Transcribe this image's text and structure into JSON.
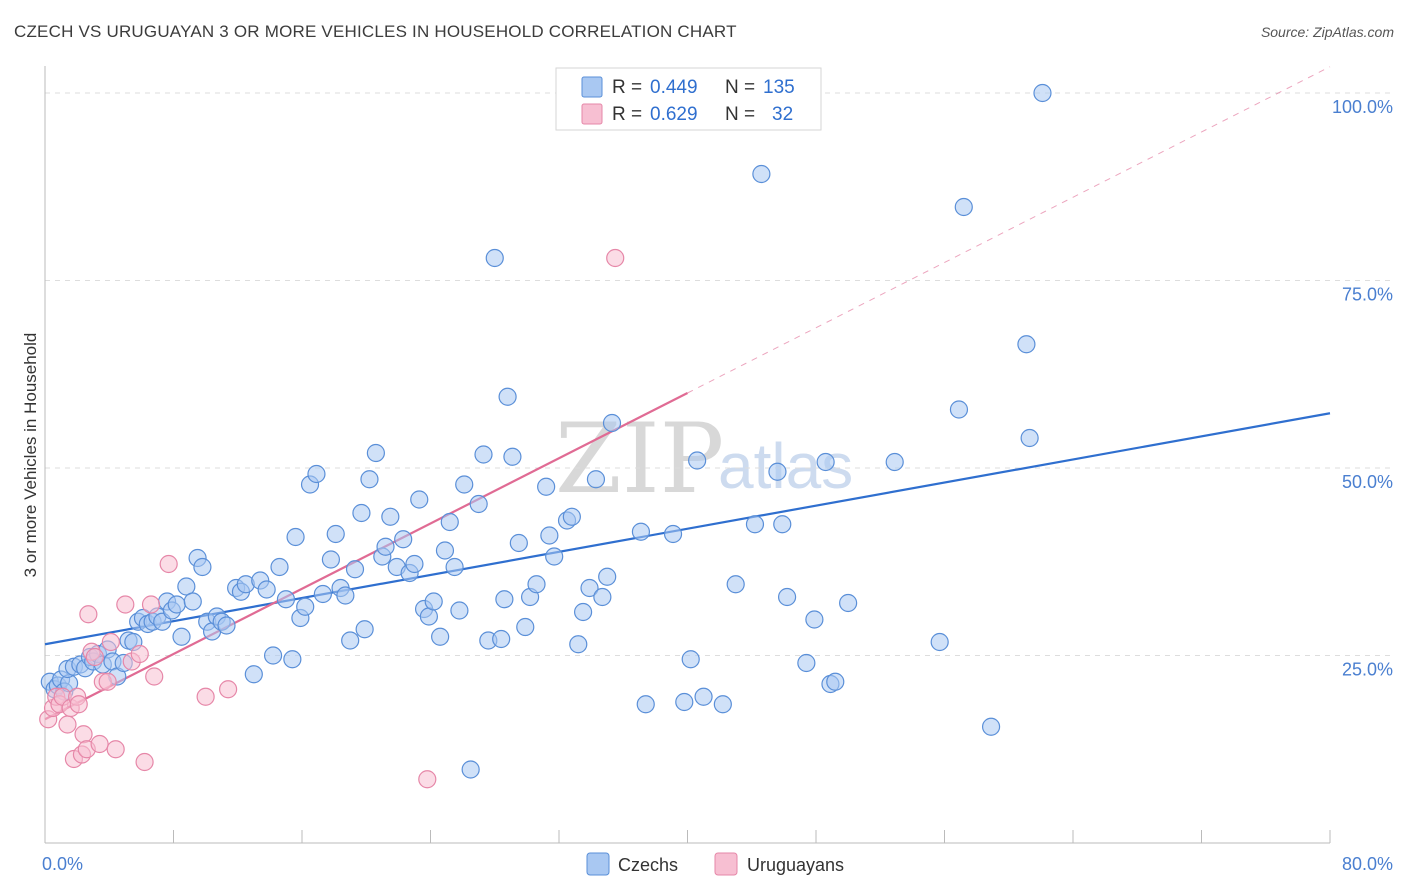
{
  "header": {
    "title": "CZECH VS URUGUAYAN 3 OR MORE VEHICLES IN HOUSEHOLD CORRELATION CHART",
    "source": "Source: ZipAtlas.com"
  },
  "legend_top": {
    "rows": [
      {
        "r_label": "R =",
        "r_value": "0.449",
        "n_label": "N =",
        "n_value": "135"
      },
      {
        "r_label": "R =",
        "r_value": "0.629",
        "n_label": "N =",
        "n_value": "32"
      }
    ]
  },
  "watermark": {
    "zip": "ZIP",
    "atlas": "atlas"
  },
  "colors": {
    "czech_fill": "#a9c8f2",
    "czech_stroke": "#5a8fd8",
    "czech_line": "#2f6fcf",
    "uruguay_fill": "#f7bfd2",
    "uruguay_stroke": "#e687a8",
    "uruguay_line": "#e06b94",
    "tick_text": "#4a7fd0",
    "grid": "#dddddd"
  },
  "chart_data": {
    "type": "scatter",
    "title": "CZECH VS URUGUAYAN 3 OR MORE VEHICLES IN HOUSEHOLD CORRELATION CHART",
    "xlabel": "",
    "ylabel": "3 or more Vehicles in Household",
    "xlim": [
      0,
      80
    ],
    "ylim": [
      0,
      102
    ],
    "x_tick_labels": [
      {
        "value": 0,
        "label": "0.0%"
      },
      {
        "value": 80,
        "label": "80.0%"
      }
    ],
    "y_tick_labels": [
      {
        "value": 25,
        "label": "25.0%"
      },
      {
        "value": 50,
        "label": "50.0%"
      },
      {
        "value": 75,
        "label": "75.0%"
      },
      {
        "value": 100,
        "label": "100.0%"
      }
    ],
    "x_minor_ticks": [
      8,
      16,
      24,
      32,
      40,
      48,
      56,
      64,
      72
    ],
    "grid": true,
    "legend_position": "bottom",
    "series": [
      {
        "name": "Czechs",
        "color_key": "czech",
        "trend": {
          "x0": 0,
          "y0": 26.5,
          "x1": 80,
          "y1": 57.3
        },
        "points": [
          [
            0.3,
            21.5
          ],
          [
            0.6,
            20.5
          ],
          [
            0.8,
            21.0
          ],
          [
            1.0,
            21.8
          ],
          [
            1.2,
            20.2
          ],
          [
            1.5,
            21.3
          ],
          [
            1.4,
            23.2
          ],
          [
            1.8,
            23.5
          ],
          [
            2.2,
            23.8
          ],
          [
            2.5,
            23.3
          ],
          [
            2.8,
            24.8
          ],
          [
            3.0,
            24.2
          ],
          [
            3.3,
            25.2
          ],
          [
            3.6,
            23.8
          ],
          [
            3.9,
            25.8
          ],
          [
            4.2,
            24.2
          ],
          [
            4.5,
            22.2
          ],
          [
            4.9,
            24.0
          ],
          [
            5.2,
            27.0
          ],
          [
            5.5,
            26.8
          ],
          [
            5.8,
            29.5
          ],
          [
            6.1,
            30.0
          ],
          [
            6.4,
            29.2
          ],
          [
            6.7,
            29.5
          ],
          [
            7.0,
            30.2
          ],
          [
            7.3,
            29.5
          ],
          [
            7.6,
            32.2
          ],
          [
            7.9,
            31.0
          ],
          [
            8.2,
            31.8
          ],
          [
            8.5,
            27.5
          ],
          [
            8.8,
            34.2
          ],
          [
            9.2,
            32.2
          ],
          [
            9.5,
            38.0
          ],
          [
            9.8,
            36.8
          ],
          [
            10.1,
            29.5
          ],
          [
            10.4,
            28.2
          ],
          [
            10.7,
            30.2
          ],
          [
            11.0,
            29.5
          ],
          [
            11.3,
            29.0
          ],
          [
            11.9,
            34.0
          ],
          [
            12.2,
            33.5
          ],
          [
            12.5,
            34.5
          ],
          [
            13.0,
            22.5
          ],
          [
            13.4,
            35.0
          ],
          [
            13.8,
            33.8
          ],
          [
            14.2,
            25.0
          ],
          [
            14.6,
            36.8
          ],
          [
            15.0,
            32.5
          ],
          [
            15.4,
            24.5
          ],
          [
            15.6,
            40.8
          ],
          [
            15.9,
            30.0
          ],
          [
            16.2,
            31.5
          ],
          [
            16.5,
            47.8
          ],
          [
            16.9,
            49.2
          ],
          [
            17.3,
            33.2
          ],
          [
            17.8,
            37.8
          ],
          [
            18.1,
            41.2
          ],
          [
            18.4,
            34.0
          ],
          [
            18.7,
            33.0
          ],
          [
            19.0,
            27.0
          ],
          [
            19.3,
            36.5
          ],
          [
            19.7,
            44.0
          ],
          [
            19.9,
            28.5
          ],
          [
            20.2,
            48.5
          ],
          [
            20.6,
            52.0
          ],
          [
            21.0,
            38.2
          ],
          [
            21.2,
            39.5
          ],
          [
            21.5,
            43.5
          ],
          [
            21.9,
            36.8
          ],
          [
            22.3,
            40.5
          ],
          [
            22.7,
            36.0
          ],
          [
            23.0,
            37.2
          ],
          [
            23.3,
            45.8
          ],
          [
            23.6,
            31.2
          ],
          [
            23.9,
            30.2
          ],
          [
            24.2,
            32.2
          ],
          [
            24.6,
            27.5
          ],
          [
            24.9,
            39.0
          ],
          [
            25.2,
            42.8
          ],
          [
            25.5,
            36.8
          ],
          [
            25.8,
            31.0
          ],
          [
            26.1,
            47.8
          ],
          [
            26.5,
            9.8
          ],
          [
            27.0,
            45.2
          ],
          [
            27.3,
            51.8
          ],
          [
            27.6,
            27.0
          ],
          [
            28.0,
            78.0
          ],
          [
            28.4,
            27.2
          ],
          [
            28.6,
            32.5
          ],
          [
            28.8,
            59.5
          ],
          [
            29.1,
            51.5
          ],
          [
            29.5,
            40.0
          ],
          [
            29.9,
            28.8
          ],
          [
            30.2,
            32.8
          ],
          [
            30.6,
            34.5
          ],
          [
            31.2,
            47.5
          ],
          [
            31.4,
            41.0
          ],
          [
            31.7,
            38.2
          ],
          [
            32.5,
            43.0
          ],
          [
            32.8,
            43.5
          ],
          [
            33.2,
            26.5
          ],
          [
            33.5,
            30.8
          ],
          [
            33.9,
            34.0
          ],
          [
            34.3,
            48.5
          ],
          [
            34.7,
            32.8
          ],
          [
            35.0,
            35.5
          ],
          [
            35.3,
            56.0
          ],
          [
            37.1,
            41.5
          ],
          [
            37.4,
            18.5
          ],
          [
            39.1,
            41.2
          ],
          [
            39.8,
            18.8
          ],
          [
            40.2,
            24.5
          ],
          [
            40.6,
            51.0
          ],
          [
            41.0,
            19.5
          ],
          [
            42.2,
            18.5
          ],
          [
            43.0,
            34.5
          ],
          [
            44.2,
            42.5
          ],
          [
            44.6,
            89.2
          ],
          [
            45.6,
            49.5
          ],
          [
            45.9,
            42.5
          ],
          [
            46.2,
            32.8
          ],
          [
            47.4,
            24.0
          ],
          [
            47.9,
            29.8
          ],
          [
            48.6,
            50.8
          ],
          [
            48.9,
            21.2
          ],
          [
            49.2,
            21.5
          ],
          [
            50.0,
            32.0
          ],
          [
            52.9,
            50.8
          ],
          [
            55.7,
            26.8
          ],
          [
            56.9,
            57.8
          ],
          [
            57.2,
            84.8
          ],
          [
            58.9,
            15.5
          ],
          [
            61.1,
            66.5
          ],
          [
            61.3,
            54.0
          ],
          [
            62.1,
            100.0
          ]
        ]
      },
      {
        "name": "Uruguayans",
        "color_key": "uruguay",
        "trend": {
          "x0": 0,
          "y0": 16.5,
          "x1": 40,
          "y1": 60.0,
          "dash_x1": 80,
          "dash_y1": 103.5
        },
        "points": [
          [
            0.2,
            16.5
          ],
          [
            0.5,
            18.0
          ],
          [
            0.7,
            19.5
          ],
          [
            0.9,
            18.5
          ],
          [
            1.1,
            19.5
          ],
          [
            1.4,
            15.8
          ],
          [
            1.6,
            18.0
          ],
          [
            1.8,
            11.2
          ],
          [
            2.0,
            19.5
          ],
          [
            2.1,
            18.5
          ],
          [
            2.3,
            11.8
          ],
          [
            2.4,
            14.5
          ],
          [
            2.6,
            12.5
          ],
          [
            2.7,
            30.5
          ],
          [
            2.9,
            25.5
          ],
          [
            3.1,
            24.8
          ],
          [
            3.4,
            13.2
          ],
          [
            3.6,
            21.5
          ],
          [
            3.9,
            21.5
          ],
          [
            4.1,
            26.8
          ],
          [
            4.4,
            12.5
          ],
          [
            5.0,
            31.8
          ],
          [
            5.4,
            24.2
          ],
          [
            5.9,
            25.2
          ],
          [
            6.2,
            10.8
          ],
          [
            6.6,
            31.8
          ],
          [
            6.8,
            22.2
          ],
          [
            7.7,
            37.2
          ],
          [
            10.0,
            19.5
          ],
          [
            11.4,
            20.5
          ],
          [
            23.8,
            8.5
          ],
          [
            35.5,
            78.0
          ]
        ]
      }
    ]
  },
  "bottom_legend": {
    "items": [
      "Czechs",
      "Uruguayans"
    ]
  }
}
